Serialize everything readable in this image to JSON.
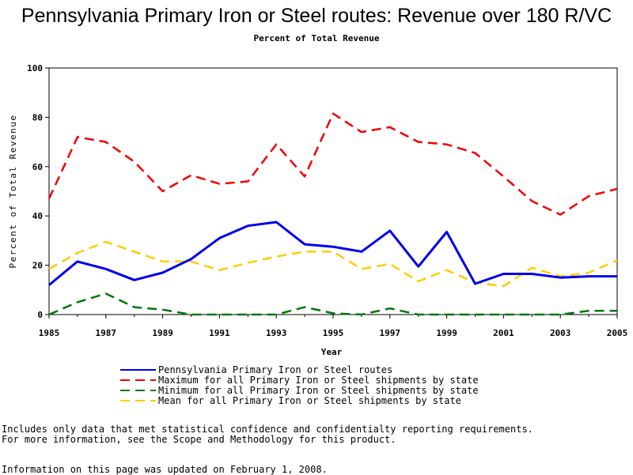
{
  "chart_data": {
    "type": "line",
    "title": "Pennsylvania Primary Iron or Steel routes: Revenue over 180 R/VC",
    "subtitle": "Percent of Total Revenue",
    "xlabel": "Year",
    "ylabel": "Percent of Total Revenue",
    "xlim": [
      1985,
      2005
    ],
    "ylim": [
      0,
      100
    ],
    "x_ticks": [
      "1985",
      "1987",
      "1989",
      "1991",
      "1993",
      "1995",
      "1997",
      "1999",
      "2001",
      "2003",
      "2005"
    ],
    "y_ticks": [
      "0",
      "20",
      "40",
      "60",
      "80",
      "100"
    ],
    "grid": false,
    "legend_position": "bottom",
    "x": [
      1985,
      1986,
      1987,
      1988,
      1989,
      1990,
      1991,
      1992,
      1993,
      1994,
      1995,
      1996,
      1997,
      1998,
      1999,
      2000,
      2001,
      2002,
      2003,
      2004,
      2005
    ],
    "series": [
      {
        "name": "Pennsylvania Primary Iron or Steel routes",
        "color": "#0000ee",
        "style": "solid",
        "values": [
          12,
          21.5,
          18.5,
          14,
          17,
          22.5,
          31,
          36,
          37.5,
          28.5,
          27.5,
          25.5,
          34,
          19.5,
          33.5,
          12.5,
          16.5,
          16.5,
          15,
          15.5,
          15.5
        ]
      },
      {
        "name": "Maximum for all Primary Iron or Steel shipments by state",
        "color": "#ee0000",
        "style": "dashed",
        "values": [
          47,
          72,
          70,
          62,
          50,
          56.5,
          53,
          54,
          69,
          56,
          81.5,
          74,
          76,
          70,
          69,
          65.5,
          56,
          46,
          40.5,
          48,
          51
        ]
      },
      {
        "name": "Minimum for all Primary Iron or Steel shipments by state",
        "color": "#007700",
        "style": "dashed",
        "values": [
          0,
          5,
          8.5,
          3,
          2,
          0,
          0,
          0,
          0,
          3,
          0.5,
          0,
          2.5,
          0,
          0,
          0,
          0,
          0,
          0,
          1.5,
          1.5
        ]
      },
      {
        "name": "Mean for all Primary Iron or Steel shipments by state",
        "color": "#ffcc00",
        "style": "dashed",
        "values": [
          18.5,
          25,
          29.5,
          25.5,
          21.5,
          21.5,
          18,
          21,
          23.5,
          25.5,
          25.5,
          18.5,
          20.5,
          13.5,
          18,
          13,
          11.5,
          19,
          15.5,
          17,
          22
        ]
      }
    ]
  },
  "notes": {
    "line1": "Includes only data that met statistical confidence and confidentialty reporting requirements.",
    "line2": "For more information, see the Scope and Methodology for this product.",
    "updated": "Information on this page was updated on February 1, 2008."
  }
}
